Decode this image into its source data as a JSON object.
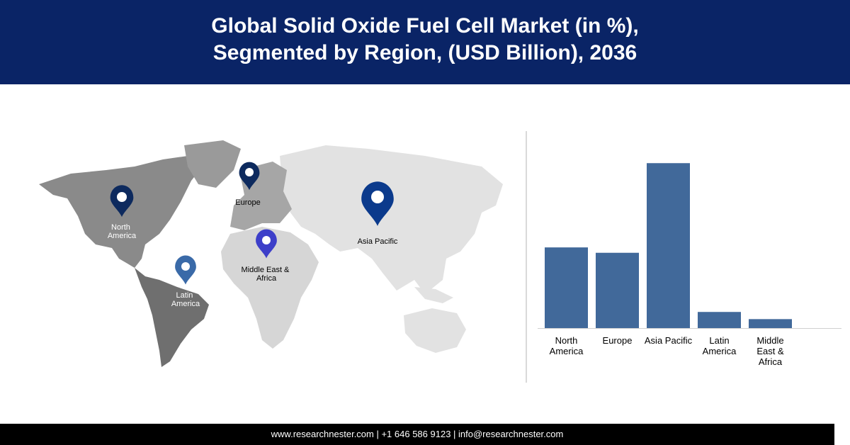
{
  "header": {
    "title_line1": "Global Solid Oxide Fuel Cell Market (in %),",
    "title_line2": "Segmented by Region, (USD Billion), 2036"
  },
  "map": {
    "pins": [
      {
        "name": "pin-north-america",
        "label_lines": [
          "North",
          "America"
        ],
        "color": "#0d2a5e"
      },
      {
        "name": "pin-europe",
        "label_lines": [
          "Europe"
        ],
        "color": "#0d2a5e"
      },
      {
        "name": "pin-asia-pacific",
        "label_lines": [
          "Asia Pacific"
        ],
        "color": "#0b3a8c"
      },
      {
        "name": "pin-middle-east-africa",
        "label_lines": [
          "Middle East &",
          "Africa"
        ],
        "color": "#3d3fc9"
      },
      {
        "name": "pin-latin-america",
        "label_lines": [
          "Latin",
          "America"
        ],
        "color": "#3a6aa8"
      }
    ]
  },
  "chart_data": {
    "type": "bar",
    "categories": [
      [
        "North",
        "America"
      ],
      [
        "Europe"
      ],
      [
        "Asia Pacific"
      ],
      [
        "Latin",
        "America"
      ],
      [
        "Middle",
        "East &",
        "Africa"
      ]
    ],
    "values": [
      45,
      42,
      92,
      9,
      5
    ],
    "ylim": [
      0,
      100
    ],
    "bar_color": "#41699a",
    "grid": false,
    "title": "",
    "xlabel": "",
    "ylabel": ""
  },
  "footer": {
    "text": "www.researchnester.com | +1 646 586 9123 | info@researchnester.com"
  }
}
